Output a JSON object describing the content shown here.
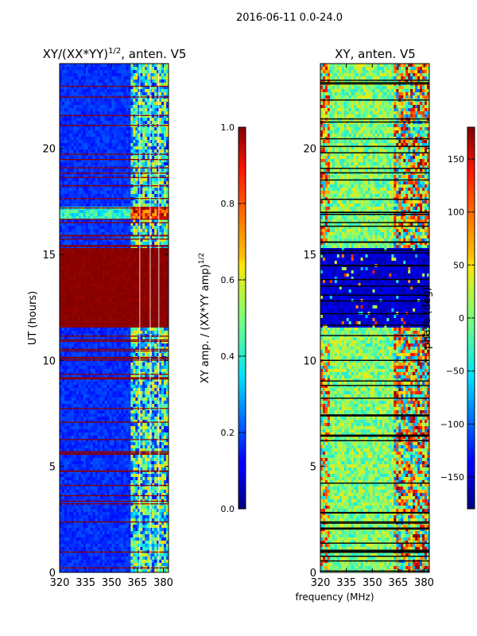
{
  "suptitle": "2016-06-11 0.0-24.0",
  "chart_data": [
    {
      "type": "heatmap",
      "title_main": "XY/(XX*YY)",
      "title_sup": "1/2",
      "title_suffix": ", anten. V5",
      "xlabel": "",
      "ylabel": "UT (hours)",
      "xlim": [
        320,
        383
      ],
      "ylim": [
        0,
        24
      ],
      "xticks": [
        320,
        335,
        350,
        365,
        380
      ],
      "yticks": [
        0,
        5,
        10,
        15,
        20
      ],
      "colorbar": {
        "label_main": "XY amp. / (XX*YY amp)",
        "label_sup": "1/2",
        "range": [
          0.0,
          1.0
        ],
        "ticks": [
          "0.0",
          "0.2",
          "0.4",
          "0.6",
          "0.8",
          "1.0"
        ],
        "tick_values": [
          0.0,
          0.2,
          0.4,
          0.6,
          0.8,
          1.0
        ]
      },
      "saturated_band_hours": [
        11.5,
        15.3
      ],
      "bright_band_hours": [
        16.6,
        17.2
      ],
      "active_freq_range_mhz": [
        361,
        383
      ]
    },
    {
      "type": "heatmap",
      "title": "XY, anten. V5",
      "xlabel": "frequency (MHz)",
      "ylabel": "",
      "xlim": [
        320,
        383
      ],
      "ylim": [
        0,
        24
      ],
      "xticks": [
        320,
        335,
        350,
        365,
        380
      ],
      "yticks": [
        0,
        5,
        10,
        15,
        20
      ],
      "colorbar": {
        "label": "phase (deg)",
        "range": [
          -180,
          180
        ],
        "ticks": [
          "150",
          "100",
          "50",
          "0",
          "−50",
          "−100",
          "−150"
        ],
        "tick_values": [
          150,
          100,
          50,
          0,
          -50,
          -100,
          -150
        ]
      },
      "low_phase_band_hours": [
        11.5,
        15.3
      ]
    }
  ]
}
